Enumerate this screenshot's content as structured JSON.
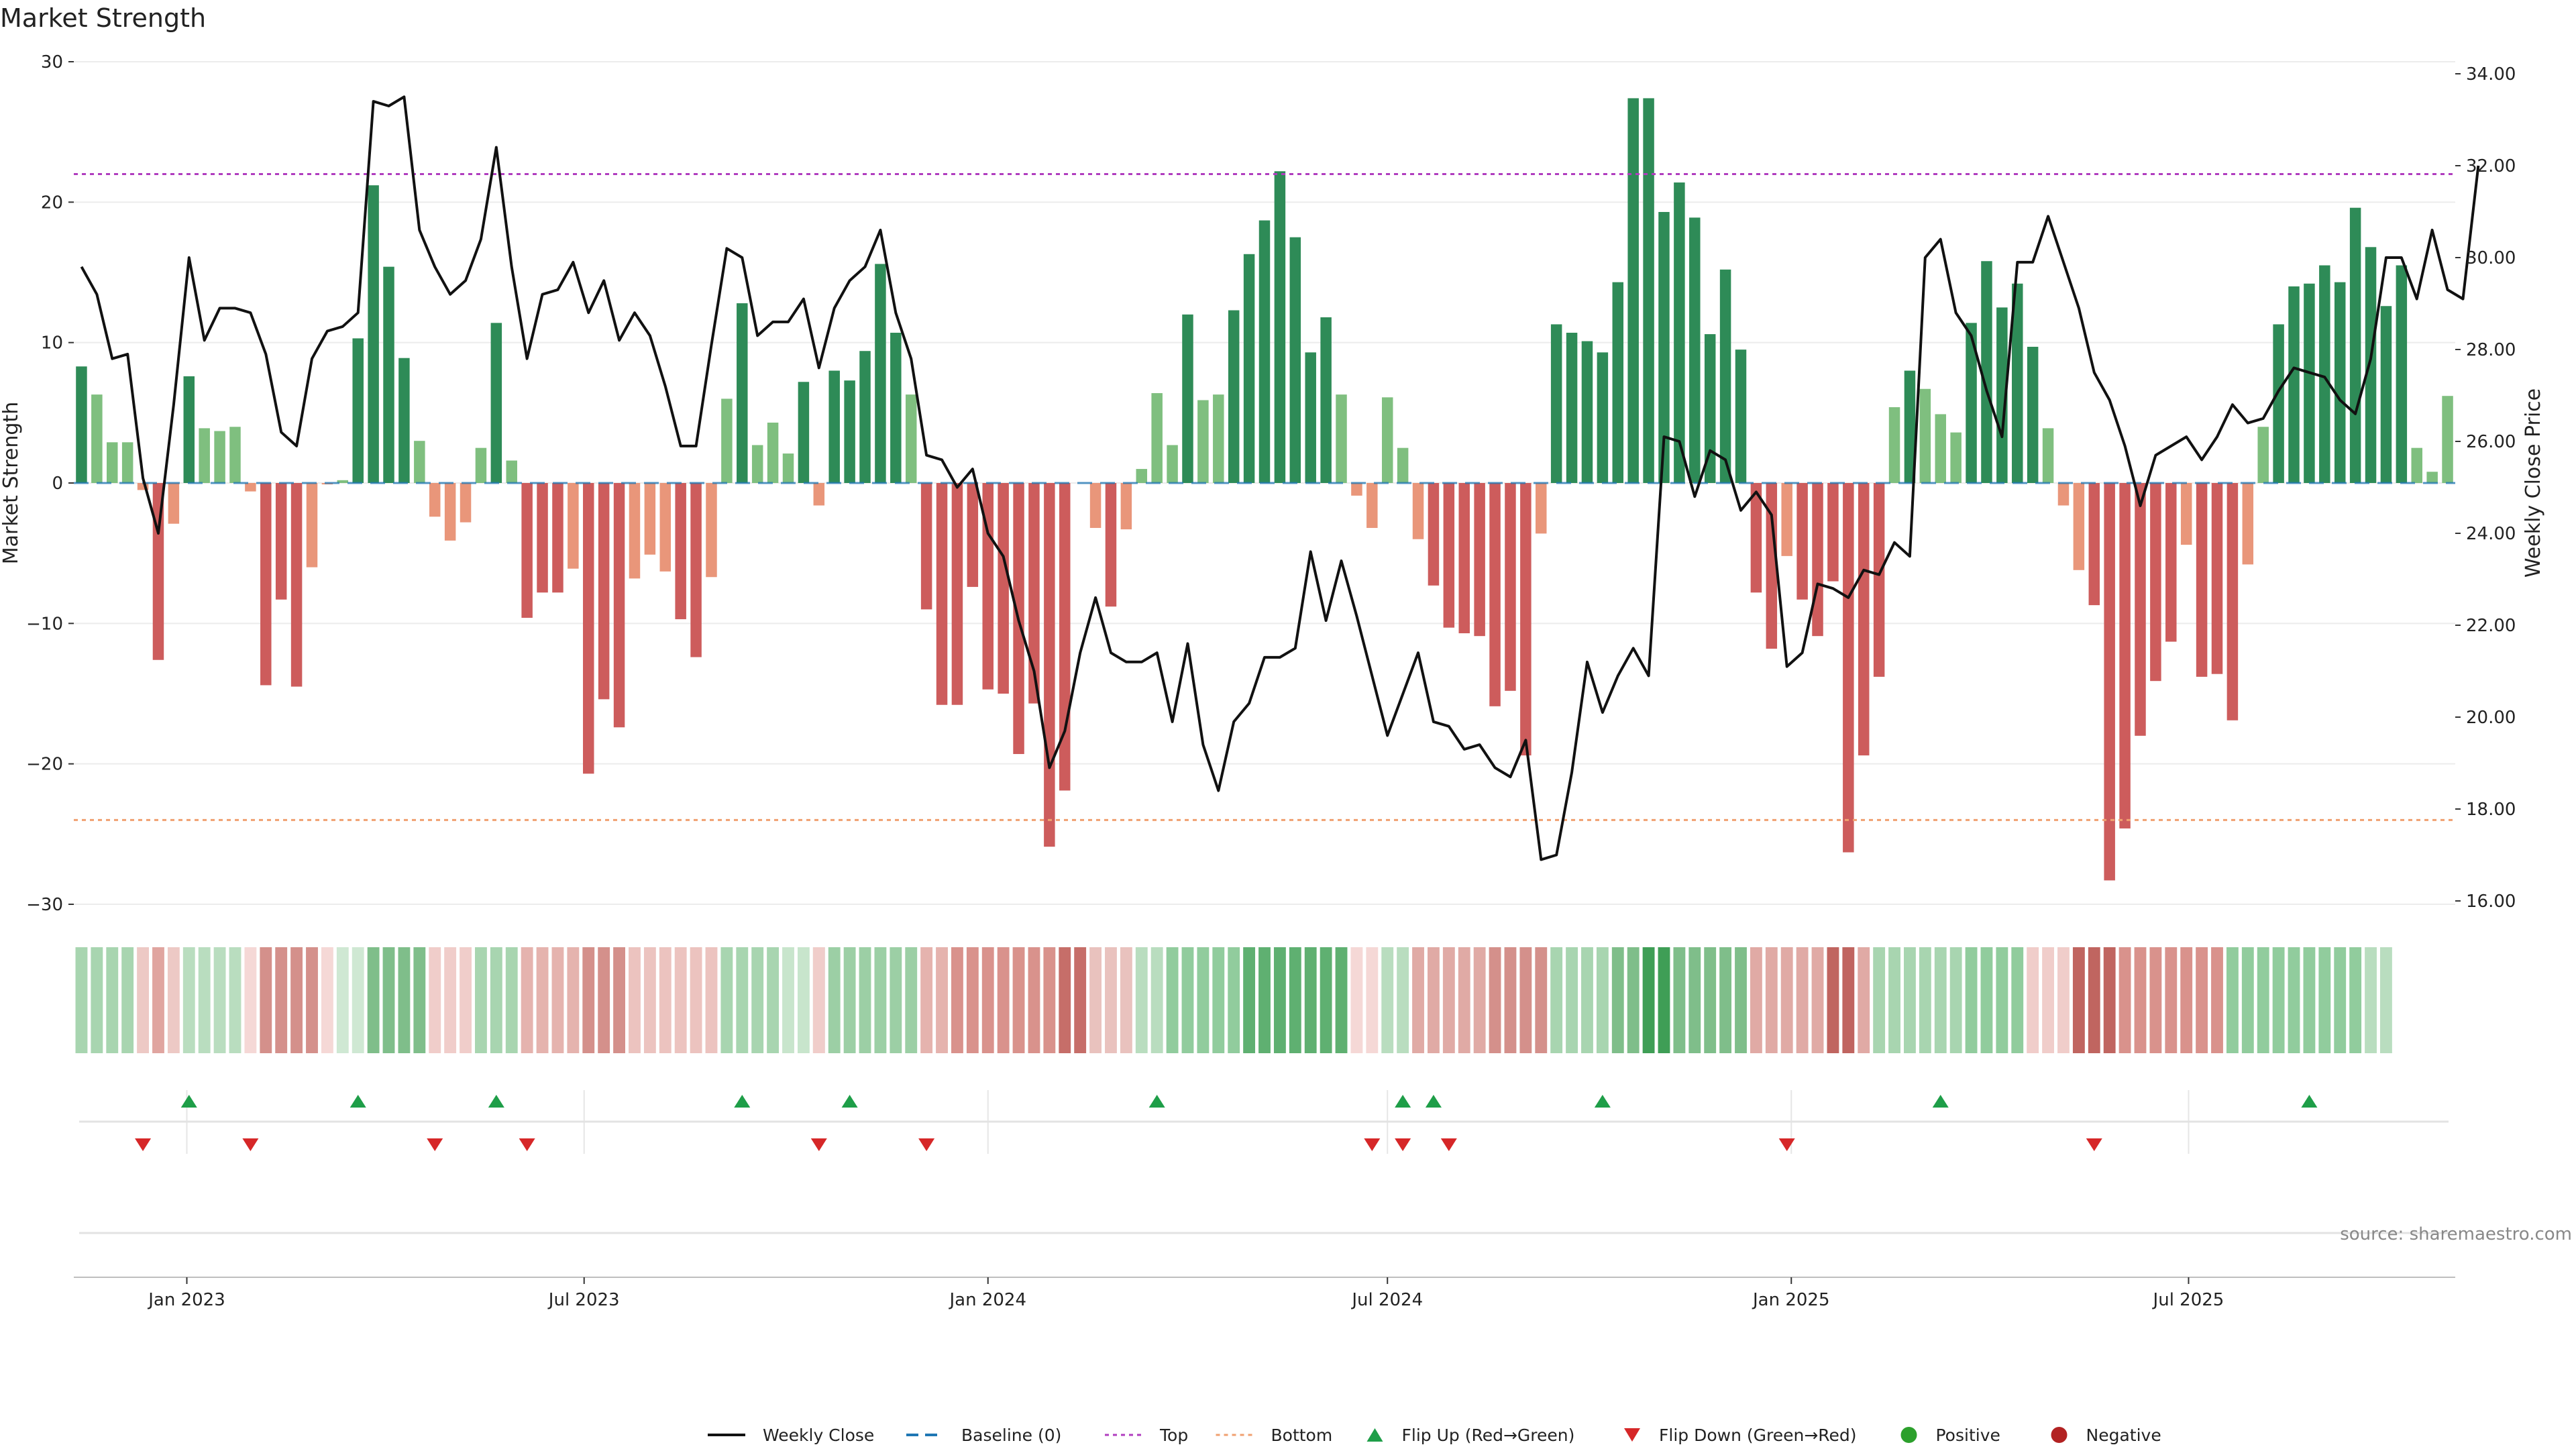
{
  "colors": {
    "bar_pos_strong": "#2e8b57",
    "bar_pos_weak": "#7fbf7f",
    "bar_neg_strong": "#cd5c5c",
    "bar_neg_weak": "#e9967a",
    "close_line": "#111111",
    "baseline": "#1f77b4",
    "top_line": "#b03dbf",
    "bottom_line": "#f0a070",
    "flip_up": "#1e9e48",
    "flip_down": "#d62728",
    "positive": "#2ca02c",
    "negative": "#b22222"
  },
  "chart_data": {
    "type": "bar+line",
    "title": "Market Strength",
    "ylabel_left": "Market Strength",
    "ylabel_right": "Weekly Close Price",
    "ylim_left": [
      -30,
      30
    ],
    "ylim_right": [
      16,
      34
    ],
    "yticks_left": [
      30,
      20,
      10,
      0,
      -10,
      -20,
      -30
    ],
    "yticks_right": [
      "34.00",
      "32.00",
      "30.00",
      "28.00",
      "26.00",
      "24.00",
      "22.00",
      "20.00",
      "18.00",
      "16.00"
    ],
    "yticks_right_values": [
      34,
      32,
      30,
      28,
      26,
      24,
      22,
      20,
      18,
      16
    ],
    "x_start_date": "2022-11-14",
    "x_interval_days": 7,
    "xtick_labels": [
      "Jan 2023",
      "Jul 2023",
      "Jan 2024",
      "Jul 2024",
      "Jan 2025",
      "Jul 2025"
    ],
    "xtick_dates": [
      "2023-01-01",
      "2023-07-01",
      "2024-01-01",
      "2024-07-01",
      "2025-01-01",
      "2025-07-01"
    ],
    "top_level": 22,
    "bottom_level": -24,
    "strength": [
      8.3,
      6.3,
      2.9,
      2.9,
      -0.5,
      -12.6,
      -2.9,
      7.6,
      3.9,
      3.7,
      4.0,
      -0.6,
      -14.4,
      -8.3,
      -14.5,
      -6.0,
      -0.1,
      0.2,
      10.3,
      21.2,
      15.4,
      8.9,
      3.0,
      -2.4,
      -4.1,
      -2.8,
      2.5,
      11.4,
      1.6,
      -9.6,
      -7.8,
      -7.8,
      -6.1,
      -20.7,
      -15.4,
      -17.4,
      -6.8,
      -5.1,
      -6.3,
      -9.7,
      -12.4,
      -6.7,
      6.0,
      12.8,
      2.7,
      4.3,
      2.1,
      7.2,
      -1.6,
      8.0,
      7.3,
      9.4,
      15.6,
      10.7,
      6.3,
      -9.0,
      -15.8,
      -15.8,
      -7.4,
      -14.7,
      -15.0,
      -19.3,
      -15.7,
      -25.9,
      -21.9,
      0,
      -3.2,
      -8.8,
      -3.3,
      1.0,
      6.4,
      2.7,
      12.0,
      5.9,
      6.3,
      12.3,
      16.3,
      18.7,
      22.2,
      17.5,
      9.3,
      11.8,
      6.3,
      -0.9,
      -3.2,
      6.1,
      2.5,
      -4.0,
      -7.3,
      -10.3,
      -10.7,
      -10.9,
      -15.9,
      -14.8,
      -19.4,
      -3.6,
      11.3,
      10.7,
      10.1,
      9.3,
      14.3,
      27.4,
      27.4,
      19.3,
      21.4,
      18.9,
      10.6,
      15.2,
      9.5,
      -7.8,
      -11.8,
      -5.2,
      -8.3,
      -10.9,
      -7.0,
      -26.3,
      -19.4,
      -13.8,
      5.4,
      8.0,
      6.7,
      4.9,
      3.6,
      11.4,
      15.8,
      12.5,
      14.2,
      9.7,
      3.9,
      -1.6,
      -6.2,
      -8.7,
      -28.3,
      -24.6,
      -18.0,
      -14.1,
      -11.3,
      -4.4,
      -13.8,
      -13.6,
      -16.9,
      -5.8,
      4.0,
      11.3,
      14.0,
      14.2,
      15.5,
      14.3,
      19.6,
      16.8,
      12.6,
      15.5,
      2.5,
      0.8,
      6.2
    ],
    "weekly_close": [
      29.8,
      29.2,
      27.8,
      27.9,
      25.2,
      24.0,
      26.8,
      30.0,
      28.2,
      28.9,
      28.9,
      28.8,
      27.9,
      26.2,
      25.9,
      27.8,
      28.4,
      28.5,
      28.8,
      33.4,
      33.3,
      33.5,
      30.6,
      29.8,
      29.2,
      29.5,
      30.4,
      32.4,
      29.8,
      27.8,
      29.2,
      29.3,
      29.9,
      28.8,
      29.5,
      28.2,
      28.8,
      28.3,
      27.2,
      25.9,
      25.9,
      28.1,
      30.2,
      30.0,
      28.3,
      28.6,
      28.6,
      29.1,
      27.6,
      28.9,
      29.5,
      29.8,
      30.6,
      28.8,
      27.8,
      25.7,
      25.6,
      25.0,
      25.4,
      24.0,
      23.5,
      22.1,
      21.0,
      18.9,
      19.7,
      21.4,
      22.6,
      21.4,
      21.2,
      21.2,
      21.4,
      19.9,
      21.6,
      19.4,
      18.4,
      19.9,
      20.3,
      21.3,
      21.3,
      21.5,
      23.6,
      22.1,
      23.4,
      22.2,
      20.9,
      19.6,
      20.5,
      21.4,
      19.9,
      19.8,
      19.3,
      19.4,
      18.9,
      18.7,
      19.5,
      16.9,
      17.0,
      18.8,
      21.2,
      20.1,
      20.9,
      21.5,
      20.9,
      26.1,
      26.0,
      24.8,
      25.8,
      25.6,
      24.5,
      24.9,
      24.4,
      21.1,
      21.4,
      22.9,
      22.8,
      22.6,
      23.2,
      23.1,
      23.8,
      23.5,
      30.0,
      30.4,
      28.8,
      28.3,
      27.1,
      26.1,
      29.9,
      29.9,
      30.9,
      29.9,
      28.9,
      27.5,
      26.9,
      25.9,
      24.6,
      25.7,
      25.9,
      26.1,
      25.6,
      26.1,
      26.8,
      26.4,
      26.5,
      27.1,
      27.6,
      27.5,
      27.4,
      26.9,
      26.6,
      27.8,
      30.0,
      30.0,
      29.1,
      30.6,
      29.3,
      29.1,
      32.0
    ],
    "heat_strip": [
      {
        "color": "#a8d5b0",
        "values": [
          0,
          1,
          2,
          3
        ]
      },
      {
        "color": "#edc9c5",
        "values": [
          4,
          6
        ]
      },
      {
        "color": "#e0a5a0",
        "values": [
          5
        ]
      },
      {
        "color": "#b9ddbf",
        "values": [
          7,
          8,
          9,
          10
        ]
      },
      {
        "color": "#f5d8d6",
        "values": [
          11,
          16
        ]
      },
      {
        "color": "#d4908b",
        "values": [
          12,
          13,
          14,
          15
        ]
      },
      {
        "color": "#cfe8d3",
        "values": [
          17,
          18
        ]
      },
      {
        "color": "#7fbe8a",
        "values": [
          19,
          20,
          21,
          22
        ]
      },
      {
        "color": "#f0cdca",
        "values": [
          23,
          24,
          25
        ]
      },
      {
        "color": "#a8d5b0",
        "values": [
          26,
          27,
          28
        ]
      },
      {
        "color": "#e5b3ae",
        "values": [
          29,
          30,
          31,
          32
        ]
      },
      {
        "color": "#d4908b",
        "values": [
          33,
          34,
          35
        ]
      },
      {
        "color": "#ecc3bf",
        "values": [
          36,
          37,
          38,
          39,
          40,
          41
        ]
      },
      {
        "color": "#a8d5b0",
        "values": [
          42,
          43,
          44,
          45
        ]
      },
      {
        "color": "#c8e5cc",
        "values": [
          46,
          47,
          48
        ]
      },
      {
        "color": "#f0cdca",
        "values": [
          48
        ]
      },
      {
        "color": "#9ccfa5",
        "values": [
          49,
          50,
          51,
          52,
          53,
          54
        ]
      },
      {
        "color": "#e5b3ae",
        "values": [
          55,
          56
        ]
      },
      {
        "color": "#d9928c",
        "values": [
          57,
          58,
          59,
          60,
          61,
          62,
          63
        ]
      },
      {
        "color": "#c66e69",
        "values": [
          64,
          65
        ]
      },
      {
        "color": "#e9c2be",
        "values": [
          66,
          67,
          68
        ]
      },
      {
        "color": "#b9ddbf",
        "values": [
          69,
          70
        ]
      },
      {
        "color": "#91cc9d",
        "values": [
          71,
          72,
          73,
          74,
          75
        ]
      },
      {
        "color": "#5fb071",
        "values": [
          76,
          77,
          78,
          79,
          80,
          81,
          82
        ]
      },
      {
        "color": "#f5d8d6",
        "values": [
          83,
          84
        ]
      },
      {
        "color": "#b9ddbf",
        "values": [
          85,
          86
        ]
      },
      {
        "color": "#e0aaa5",
        "values": [
          87,
          88,
          89,
          90,
          91
        ]
      },
      {
        "color": "#d4908b",
        "values": [
          92,
          93,
          94,
          95
        ]
      },
      {
        "color": "#a8d5b0",
        "values": [
          96,
          97,
          98,
          99
        ]
      },
      {
        "color": "#7fbe8a",
        "values": [
          100,
          101
        ]
      },
      {
        "color": "#3f9e56",
        "values": [
          102,
          103
        ]
      },
      {
        "color": "#7fbe8a",
        "values": [
          104,
          105,
          106,
          107,
          108
        ]
      },
      {
        "color": "#e0aaa5",
        "values": [
          109,
          110,
          111,
          112,
          113
        ]
      },
      {
        "color": "#c06560",
        "values": [
          114,
          115
        ]
      },
      {
        "color": "#e0aaa5",
        "values": [
          116
        ]
      },
      {
        "color": "#a8d5b0",
        "values": [
          117,
          118,
          119,
          120,
          121,
          122
        ]
      },
      {
        "color": "#91cc9d",
        "values": [
          123,
          124,
          125,
          126
        ]
      },
      {
        "color": "#f0cdca",
        "values": [
          127,
          128,
          129
        ]
      },
      {
        "color": "#c06560",
        "values": [
          130,
          131,
          132
        ]
      },
      {
        "color": "#d9928c",
        "values": [
          133,
          134,
          135,
          136,
          137,
          138,
          139
        ]
      },
      {
        "color": "#91cc9d",
        "values": [
          140,
          141,
          142,
          143,
          144,
          145,
          146,
          147,
          148
        ]
      },
      {
        "color": "#b9ddbf",
        "values": [
          149,
          150
        ]
      }
    ],
    "flip_up_weeks": [
      7,
      18,
      27,
      43,
      50,
      70,
      86,
      88,
      99,
      121,
      145
    ],
    "flip_down_weeks": [
      4,
      11,
      23,
      29,
      48,
      55,
      84,
      86,
      89,
      111,
      131
    ],
    "source": "source: sharemaestro.com",
    "legend": [
      {
        "key": "close",
        "label": "Weekly Close"
      },
      {
        "key": "baseline",
        "label": "Baseline (0)"
      },
      {
        "key": "top",
        "label": "Top"
      },
      {
        "key": "bottom",
        "label": "Bottom"
      },
      {
        "key": "flip_up",
        "label": "Flip Up (Red→Green)"
      },
      {
        "key": "flip_down",
        "label": "Flip Down (Green→Red)"
      },
      {
        "key": "positive",
        "label": "Positive"
      },
      {
        "key": "negative",
        "label": "Negative"
      }
    ]
  }
}
